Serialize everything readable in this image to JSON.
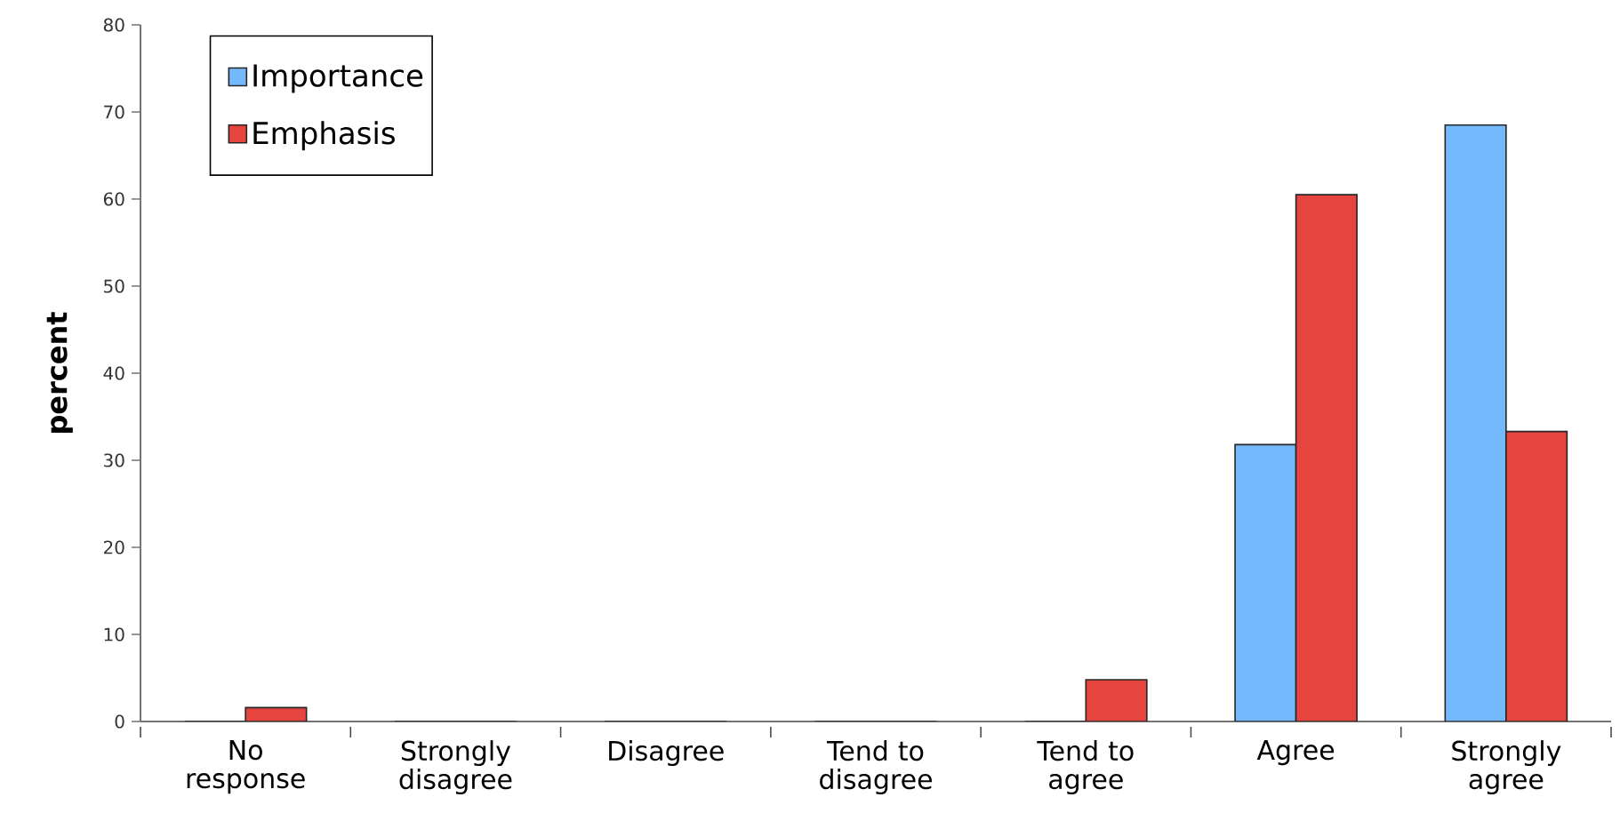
{
  "chart_data": {
    "type": "bar",
    "ylabel": "percent",
    "categories": [
      "No response",
      "Strongly disagree",
      "Disagree",
      "Tend to disagree",
      "Tend to agree",
      "Agree",
      "Strongly agree"
    ],
    "series": [
      {
        "name": "Importance",
        "color": "#75b9fd",
        "values": [
          0,
          0,
          0,
          0,
          0,
          31.8,
          68.5
        ]
      },
      {
        "name": "Emphasis",
        "color": "#e5443f",
        "values": [
          1.6,
          0,
          0,
          0,
          4.8,
          60.5,
          33.3
        ]
      }
    ],
    "ylim": [
      0,
      80
    ],
    "yticks": [
      0,
      10,
      20,
      30,
      40,
      50,
      60,
      70,
      80
    ],
    "grid": false,
    "legend": "top left"
  }
}
